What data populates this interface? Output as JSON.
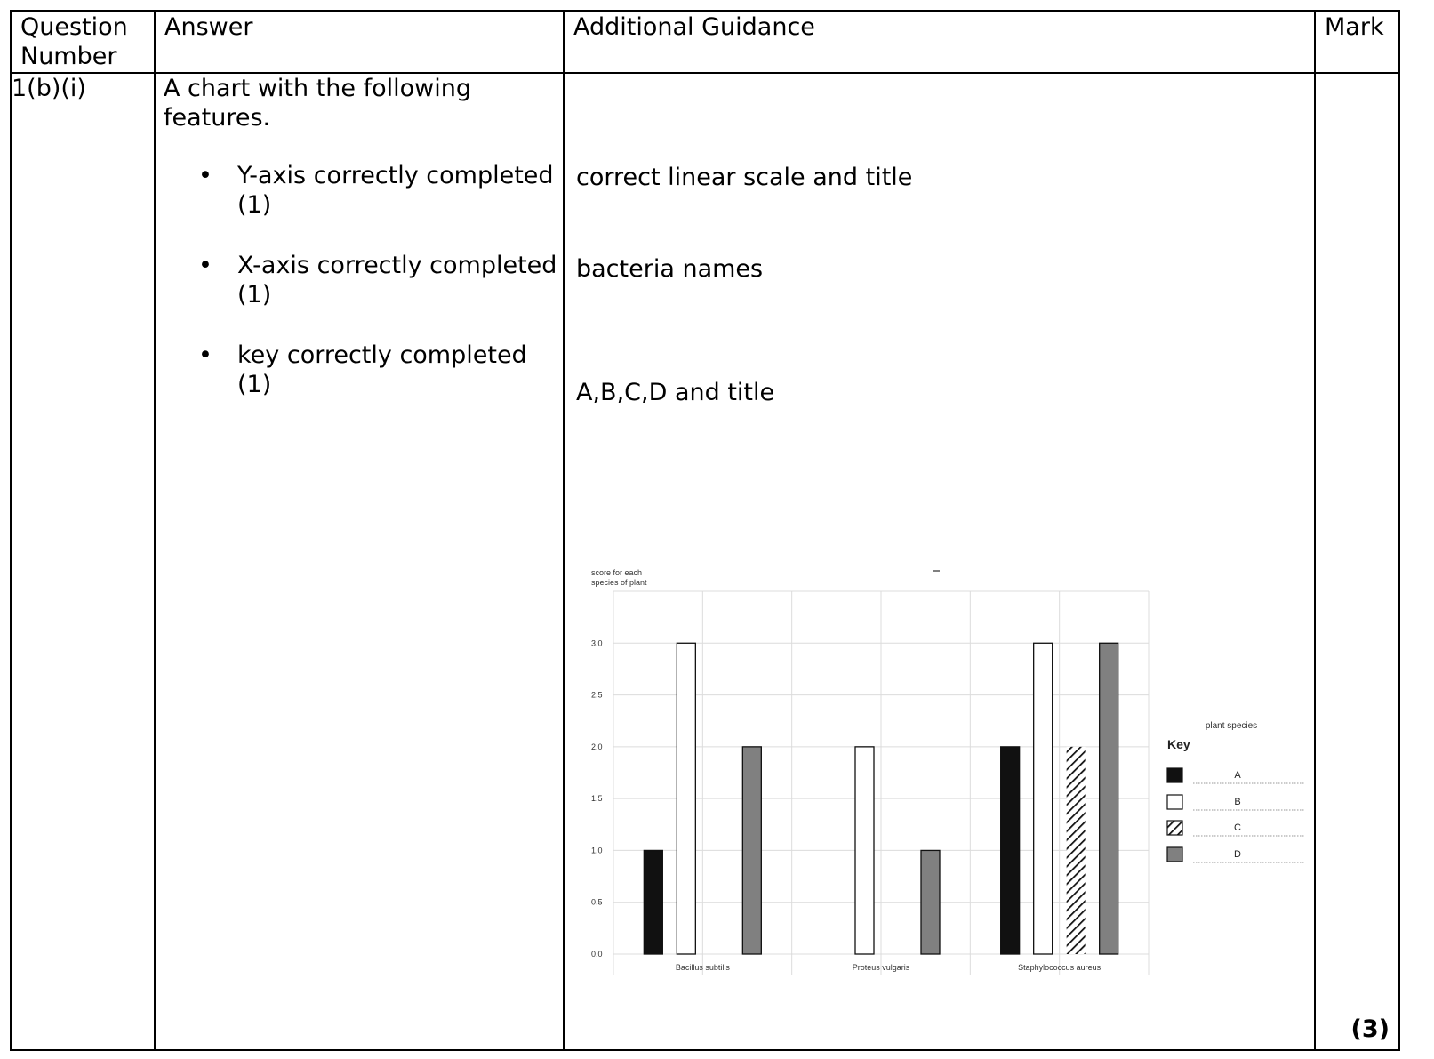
{
  "headers": {
    "question_number": "Question Number",
    "answer": "Answer",
    "guidance": "Additional Guidance",
    "mark": "Mark"
  },
  "row": {
    "question": "1(b)(i)",
    "intro": "A chart with the following features.",
    "items": [
      "Y-axis correctly completed (1)",
      "X-axis correctly completed (1)",
      "key correctly completed (1)"
    ],
    "guidance": [
      "correct linear scale and title",
      "bacteria names",
      "A,B,C,D and title"
    ],
    "total_mark": "(3)"
  },
  "chart_data": {
    "type": "bar",
    "ylabel": "score for each species of plant",
    "legend_title": "plant species",
    "key_label": "Key",
    "categories": [
      "Bacillus subtilis",
      "Proteus vulgaris",
      "Staphylococcus aureus"
    ],
    "yticks": [
      "0.0",
      "0.5",
      "1.0",
      "1.5",
      "2.0",
      "2.5",
      "3.0"
    ],
    "ylim": [
      0,
      3.5
    ],
    "series": [
      {
        "name": "A",
        "fill": "#111111",
        "values": [
          1,
          0,
          2
        ]
      },
      {
        "name": "B",
        "fill": "#ffffff",
        "values": [
          3,
          2,
          3
        ]
      },
      {
        "name": "C",
        "fill": "hatch",
        "values": [
          0,
          0,
          2
        ]
      },
      {
        "name": "D",
        "fill": "#808080",
        "values": [
          2,
          1,
          3
        ]
      }
    ],
    "grid": true,
    "legend_position": "right"
  }
}
